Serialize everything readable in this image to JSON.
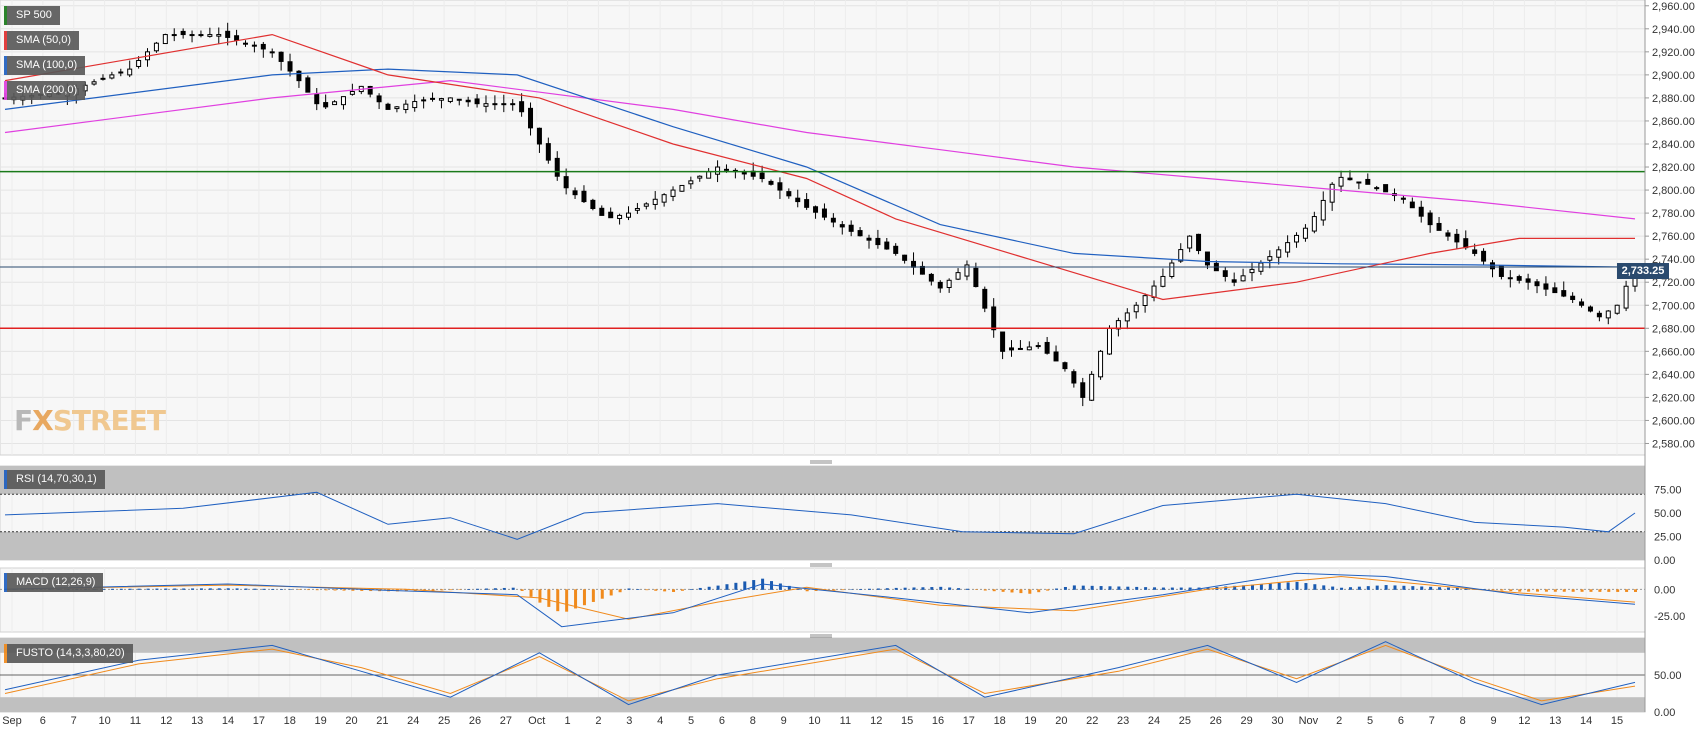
{
  "legends": {
    "main": [
      {
        "label": "SP 500",
        "color": "#1a7a1a"
      },
      {
        "label": "SMA (50,0)",
        "color": "#e03030"
      },
      {
        "label": "SMA (100,0)",
        "color": "#2060c0"
      },
      {
        "label": "SMA (200,0)",
        "color": "#e040e0"
      }
    ],
    "rsi": {
      "label": "RSI (14,70,30,1)",
      "color": "#2060c0"
    },
    "macd": {
      "label": "MACD (12,26,9)",
      "color": "#2060c0"
    },
    "fusto": {
      "label": "FUSTO (14,3,3,80,20)",
      "color": "#f08a1c"
    }
  },
  "logo": {
    "fx": "F",
    "x": "X",
    "street": "STREET"
  },
  "last_price": "2,733.25",
  "chart_data": [
    {
      "type": "candlestick",
      "instrument": "SP 500",
      "x_tick_labels": [
        "Sep",
        "6",
        "7",
        "10",
        "11",
        "12",
        "13",
        "14",
        "17",
        "18",
        "19",
        "20",
        "21",
        "24",
        "25",
        "26",
        "27",
        "Oct",
        "1",
        "2",
        "3",
        "4",
        "5",
        "6",
        "8",
        "9",
        "10",
        "11",
        "12",
        "15",
        "16",
        "17",
        "18",
        "19",
        "20",
        "22",
        "23",
        "24",
        "25",
        "26",
        "29",
        "30",
        "Nov",
        "2",
        "5",
        "6",
        "7",
        "8",
        "9",
        "12",
        "13",
        "14",
        "15"
      ],
      "y_tick_labels": [
        "2,960.00",
        "2,940.00",
        "2,920.00",
        "2,900.00",
        "2,880.00",
        "2,860.00",
        "2,840.00",
        "2,820.00",
        "2,800.00",
        "2,780.00",
        "2,760.00",
        "2,740.00",
        "2,720.00",
        "2,700.00",
        "2,680.00",
        "2,660.00",
        "2,640.00",
        "2,620.00",
        "2,600.00",
        "2,580.00"
      ],
      "ylim": [
        2570,
        2965
      ],
      "horizontal_lines": [
        {
          "value": 2816,
          "color": "#1a7a1a"
        },
        {
          "value": 2733.25,
          "color": "#2a4a6e"
        },
        {
          "value": 2680,
          "color": "#e02020"
        }
      ],
      "close_path": [
        [
          0,
          2880
        ],
        [
          14,
          2885
        ],
        [
          24,
          2900
        ],
        [
          28,
          2905
        ],
        [
          36,
          2935
        ],
        [
          48,
          2935
        ],
        [
          60,
          2920
        ],
        [
          66,
          2895
        ],
        [
          71,
          2870
        ],
        [
          80,
          2890
        ],
        [
          86,
          2870
        ],
        [
          93,
          2878
        ],
        [
          100,
          2880
        ],
        [
          106,
          2875
        ],
        [
          115,
          2875
        ],
        [
          125,
          2805
        ],
        [
          135,
          2775
        ],
        [
          140,
          2780
        ],
        [
          150,
          2800
        ],
        [
          160,
          2820
        ],
        [
          170,
          2810
        ],
        [
          180,
          2785
        ],
        [
          188,
          2768
        ],
        [
          200,
          2745
        ],
        [
          210,
          2715
        ],
        [
          216,
          2735
        ],
        [
          224,
          2660
        ],
        [
          232,
          2665
        ],
        [
          238,
          2645
        ],
        [
          242,
          2620
        ],
        [
          248,
          2680
        ],
        [
          254,
          2700
        ],
        [
          260,
          2725
        ],
        [
          266,
          2760
        ],
        [
          270,
          2735
        ],
        [
          276,
          2720
        ],
        [
          285,
          2745
        ],
        [
          293,
          2770
        ],
        [
          299,
          2812
        ],
        [
          306,
          2805
        ],
        [
          314,
          2792
        ],
        [
          320,
          2770
        ],
        [
          330,
          2745
        ],
        [
          336,
          2725
        ],
        [
          342,
          2720
        ],
        [
          352,
          2705
        ],
        [
          358,
          2690
        ],
        [
          362,
          2700
        ],
        [
          366,
          2733
        ]
      ],
      "sma50": [
        [
          0,
          2895
        ],
        [
          60,
          2935
        ],
        [
          86,
          2900
        ],
        [
          120,
          2880
        ],
        [
          150,
          2840
        ],
        [
          180,
          2810
        ],
        [
          200,
          2775
        ],
        [
          230,
          2740
        ],
        [
          260,
          2705
        ],
        [
          290,
          2720
        ],
        [
          320,
          2745
        ],
        [
          340,
          2758
        ],
        [
          366,
          2758
        ]
      ],
      "sma100": [
        [
          0,
          2870
        ],
        [
          60,
          2900
        ],
        [
          86,
          2905
        ],
        [
          115,
          2900
        ],
        [
          150,
          2855
        ],
        [
          180,
          2820
        ],
        [
          210,
          2770
        ],
        [
          240,
          2745
        ],
        [
          270,
          2738
        ],
        [
          300,
          2736
        ],
        [
          330,
          2735
        ],
        [
          366,
          2733
        ]
      ],
      "sma200": [
        [
          0,
          2850
        ],
        [
          60,
          2880
        ],
        [
          100,
          2895
        ],
        [
          150,
          2870
        ],
        [
          180,
          2850
        ],
        [
          210,
          2835
        ],
        [
          240,
          2820
        ],
        [
          270,
          2810
        ],
        [
          300,
          2800
        ],
        [
          330,
          2790
        ],
        [
          366,
          2775
        ]
      ]
    },
    {
      "type": "line",
      "name": "RSI (14,70,30,1)",
      "ylim": [
        0,
        100
      ],
      "y_tick_labels": [
        "75.00",
        "50.00",
        "25.00",
        "0.00"
      ],
      "bands": [
        70,
        30
      ],
      "values": [
        [
          0,
          48
        ],
        [
          40,
          55
        ],
        [
          70,
          72
        ],
        [
          86,
          38
        ],
        [
          100,
          45
        ],
        [
          115,
          22
        ],
        [
          130,
          50
        ],
        [
          160,
          60
        ],
        [
          190,
          48
        ],
        [
          215,
          30
        ],
        [
          240,
          28
        ],
        [
          260,
          58
        ],
        [
          290,
          70
        ],
        [
          310,
          60
        ],
        [
          330,
          40
        ],
        [
          350,
          35
        ],
        [
          360,
          30
        ],
        [
          366,
          50
        ]
      ]
    },
    {
      "type": "line",
      "name": "MACD (12,26,9)",
      "y_tick_labels": [
        "0.00",
        "-25.00"
      ],
      "ylim": [
        -40,
        20
      ],
      "macd": [
        [
          0,
          0
        ],
        [
          50,
          5
        ],
        [
          86,
          -1
        ],
        [
          115,
          -5
        ],
        [
          125,
          -35
        ],
        [
          150,
          -22
        ],
        [
          170,
          5
        ],
        [
          200,
          -8
        ],
        [
          230,
          -22
        ],
        [
          260,
          -5
        ],
        [
          290,
          15
        ],
        [
          310,
          12
        ],
        [
          340,
          -5
        ],
        [
          366,
          -14
        ]
      ],
      "signal": [
        [
          0,
          0
        ],
        [
          50,
          4
        ],
        [
          90,
          0
        ],
        [
          120,
          -8
        ],
        [
          140,
          -28
        ],
        [
          160,
          -12
        ],
        [
          180,
          2
        ],
        [
          210,
          -15
        ],
        [
          240,
          -20
        ],
        [
          270,
          0
        ],
        [
          300,
          12
        ],
        [
          330,
          0
        ],
        [
          366,
          -12
        ]
      ]
    },
    {
      "type": "line",
      "name": "FUSTO (14,3,3,80,20)",
      "ylim": [
        0,
        100
      ],
      "y_tick_labels": [
        "50.00",
        "0.00"
      ],
      "bands": [
        80,
        20
      ],
      "k": [
        [
          0,
          30
        ],
        [
          30,
          70
        ],
        [
          60,
          90
        ],
        [
          80,
          55
        ],
        [
          100,
          20
        ],
        [
          120,
          80
        ],
        [
          140,
          10
        ],
        [
          160,
          50
        ],
        [
          200,
          90
        ],
        [
          220,
          20
        ],
        [
          250,
          60
        ],
        [
          270,
          90
        ],
        [
          290,
          40
        ],
        [
          310,
          95
        ],
        [
          330,
          40
        ],
        [
          345,
          10
        ],
        [
          366,
          40
        ]
      ],
      "d": [
        [
          0,
          25
        ],
        [
          30,
          65
        ],
        [
          60,
          85
        ],
        [
          80,
          60
        ],
        [
          100,
          25
        ],
        [
          120,
          75
        ],
        [
          140,
          15
        ],
        [
          160,
          45
        ],
        [
          200,
          85
        ],
        [
          220,
          25
        ],
        [
          250,
          55
        ],
        [
          270,
          85
        ],
        [
          290,
          45
        ],
        [
          310,
          90
        ],
        [
          330,
          45
        ],
        [
          345,
          15
        ],
        [
          366,
          35
        ]
      ]
    }
  ]
}
